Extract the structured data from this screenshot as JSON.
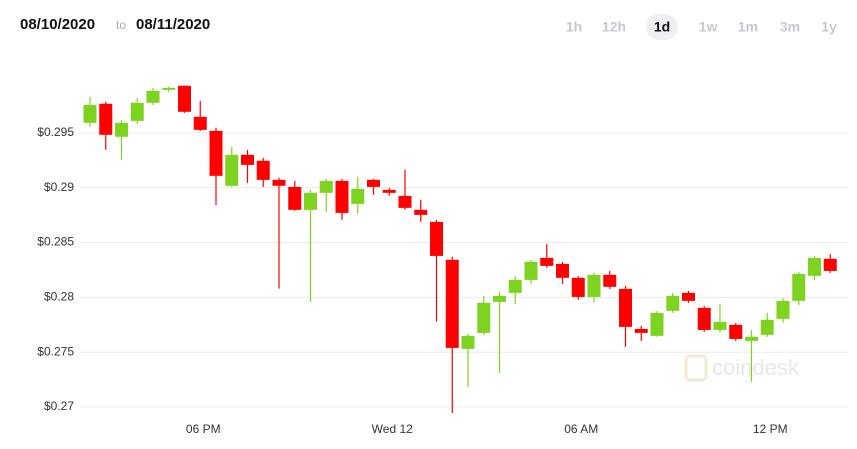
{
  "header": {
    "from": "08/10/2020",
    "to_word": "to",
    "until": "08/11/2020",
    "ranges": [
      "1h",
      "12h",
      "1d",
      "1w",
      "1m",
      "3m",
      "1y"
    ],
    "selected_range": "1d"
  },
  "watermark": "coindesk",
  "chart_data": {
    "type": "candlestick",
    "categories": [
      null,
      null,
      null,
      null,
      null,
      null,
      null,
      "06 PM",
      null,
      null,
      null,
      null,
      null,
      null,
      null,
      null,
      null,
      null,
      null,
      "Wed 12",
      null,
      null,
      null,
      null,
      null,
      null,
      null,
      null,
      null,
      null,
      null,
      "06 AM",
      null,
      null,
      null,
      null,
      null,
      null,
      null,
      null,
      null,
      null,
      null,
      "12 PM",
      null,
      null,
      null,
      null
    ],
    "open": [
      0.29591,
      0.29765,
      0.29464,
      0.29609,
      0.29774,
      0.29892,
      0.29929,
      0.29646,
      0.29518,
      0.29017,
      0.29299,
      0.29245,
      0.29071,
      0.29007,
      0.28798,
      0.28953,
      0.29062,
      0.28852,
      0.29071,
      0.2898,
      0.28925,
      0.28798,
      0.28688,
      0.28342,
      0.2753,
      0.27676,
      0.27959,
      0.28041,
      0.28159,
      0.2836,
      0.28305,
      0.28178,
      0.28004,
      0.28205,
      0.28077,
      0.27712,
      0.27649,
      0.27877,
      0.28041,
      0.27904,
      0.27703,
      0.27749,
      0.27603,
      0.27658,
      0.27804,
      0.27968,
      0.28196,
      0.28351
    ],
    "high": [
      0.29828,
      0.29783,
      0.29619,
      0.29819,
      0.2991,
      0.2992,
      0.29929,
      0.29792,
      0.29546,
      0.29372,
      0.29345,
      0.29272,
      0.2909,
      0.29062,
      0.2898,
      0.2908,
      0.2908,
      0.29099,
      0.2908,
      0.28998,
      0.29163,
      0.28889,
      0.28707,
      0.28369,
      0.27667,
      0.28013,
      0.2805,
      0.28196,
      0.28342,
      0.28488,
      0.28324,
      0.28196,
      0.28223,
      0.28241,
      0.28105,
      0.2774,
      0.27877,
      0.28041,
      0.28059,
      0.27922,
      0.2794,
      0.27767,
      0.27703,
      0.27858,
      0.27995,
      0.28232,
      0.28378,
      0.28396
    ],
    "low": [
      0.29555,
      0.29345,
      0.29254,
      0.29582,
      0.29755,
      0.29874,
      0.29682,
      0.29518,
      0.28843,
      0.29007,
      0.29044,
      0.29007,
      0.28079,
      0.28789,
      0.2796,
      0.2878,
      0.28707,
      0.28761,
      0.28935,
      0.28925,
      0.28798,
      0.28688,
      0.27778,
      0.26946,
      0.27183,
      0.27658,
      0.27313,
      0.2794,
      0.28123,
      0.28269,
      0.28123,
      0.27977,
      0.2795,
      0.28077,
      0.27548,
      0.27603,
      0.2764,
      0.27858,
      0.2795,
      0.27685,
      0.27676,
      0.27603,
      0.27229,
      0.2764,
      0.27767,
      0.27931,
      0.28159,
      0.28223
    ],
    "close": [
      0.29755,
      0.29482,
      0.29591,
      0.29774,
      0.29883,
      0.2991,
      0.29692,
      0.29527,
      0.29108,
      0.29299,
      0.29208,
      0.29071,
      0.29017,
      0.28798,
      0.28953,
      0.29062,
      0.2877,
      0.28989,
      0.29007,
      0.28953,
      0.28816,
      0.28752,
      0.28378,
      0.27539,
      0.27649,
      0.2795,
      0.28013,
      0.28159,
      0.28324,
      0.28287,
      0.28178,
      0.28004,
      0.28205,
      0.28096,
      0.27731,
      0.27676,
      0.27858,
      0.28013,
      0.27968,
      0.27703,
      0.27776,
      0.27621,
      0.2764,
      0.27795,
      0.27968,
      0.28214,
      0.2836,
      0.28241
    ],
    "up_color": "#7ed321",
    "down_color": "#ff0000",
    "ylim": [
      0.269,
      0.3
    ],
    "yticks": [
      {
        "value": 0.27,
        "label": "$0.27"
      },
      {
        "value": 0.275,
        "label": "$0.275"
      },
      {
        "value": 0.28,
        "label": "$0.28"
      },
      {
        "value": 0.285,
        "label": "$0.285"
      },
      {
        "value": 0.29,
        "label": "$0.29"
      },
      {
        "value": 0.295,
        "label": "$0.295"
      }
    ],
    "grid": true
  }
}
